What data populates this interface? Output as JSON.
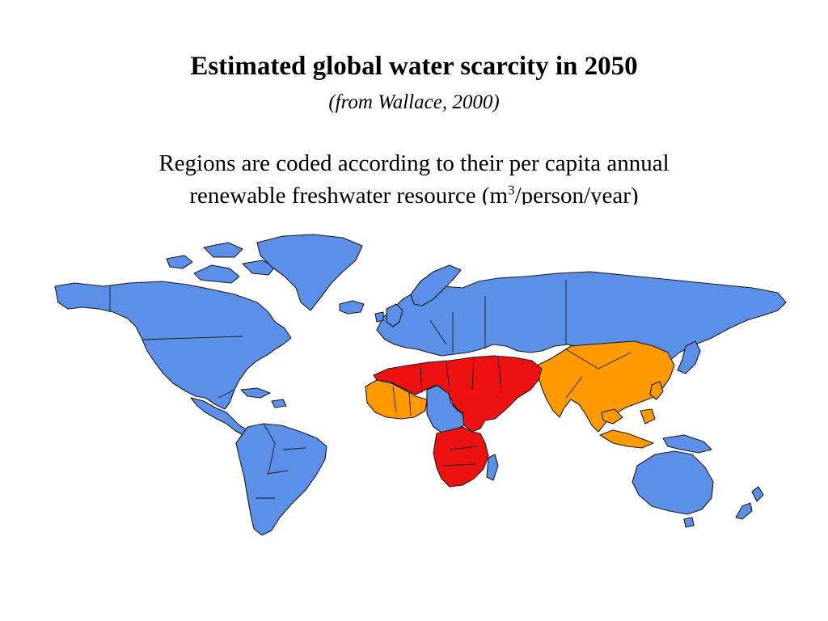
{
  "slide": {
    "title": "Estimated global water scarcity in 2050",
    "subtitle": "(from Wallace, 2000)",
    "description_line1": "Regions are coded according to their per capita annual",
    "description_line2_pre": "renewable freshwater resource (m",
    "description_sup": "3",
    "description_line2_post": "/person/year)"
  },
  "map": {
    "colors": {
      "ocean": "#ffffff",
      "blue": "#5b8fe8",
      "orange": "#ff9900",
      "red": "#ee1111",
      "border": "#1a1a1a"
    }
  }
}
